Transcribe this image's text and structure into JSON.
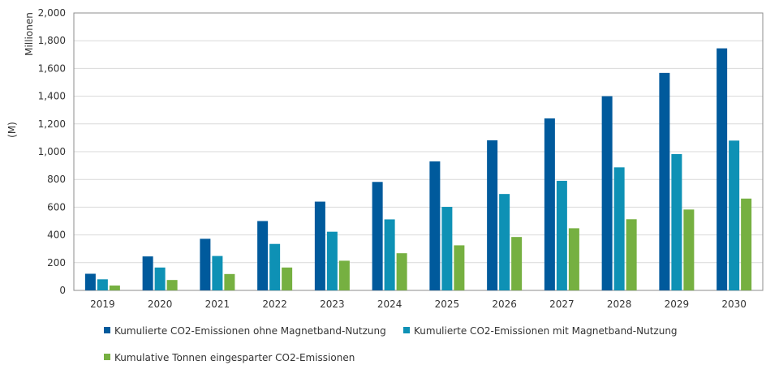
{
  "chart_data": {
    "type": "bar",
    "categories": [
      "2019",
      "2020",
      "2021",
      "2022",
      "2023",
      "2024",
      "2025",
      "2026",
      "2027",
      "2028",
      "2029",
      "2030"
    ],
    "series": [
      {
        "name": "Kumulierte CO2-Emissionen ohne Magnetband-Nutzung",
        "color": "#005A9C",
        "values": [
          120,
          245,
          372,
          500,
          640,
          782,
          930,
          1082,
          1240,
          1400,
          1568,
          1745
        ]
      },
      {
        "name": "Kumulierte CO2-Emissionen mit Magnetband-Nutzung",
        "color": "#0E91B5",
        "values": [
          80,
          165,
          248,
          335,
          423,
          512,
          602,
          695,
          790,
          887,
          983,
          1080
        ]
      },
      {
        "name": "Kumulative Tonnen eingesparter CO2-Emissionen",
        "color": "#76B041",
        "values": [
          35,
          75,
          118,
          165,
          214,
          268,
          325,
          385,
          448,
          513,
          583,
          662
        ]
      }
    ],
    "ylim": [
      0,
      2000
    ],
    "yticks": [
      0,
      200,
      400,
      600,
      800,
      1000,
      1200,
      1400,
      1600,
      1800,
      2000
    ],
    "ytick_labels": [
      "0",
      "200",
      "400",
      "600",
      "800",
      "1,000",
      "1,200",
      "1,400",
      "1,600",
      "1,800",
      "2,000"
    ],
    "ylabel": "(M)",
    "yunit": "Millionen",
    "grid": true,
    "legend_position": "bottom"
  }
}
